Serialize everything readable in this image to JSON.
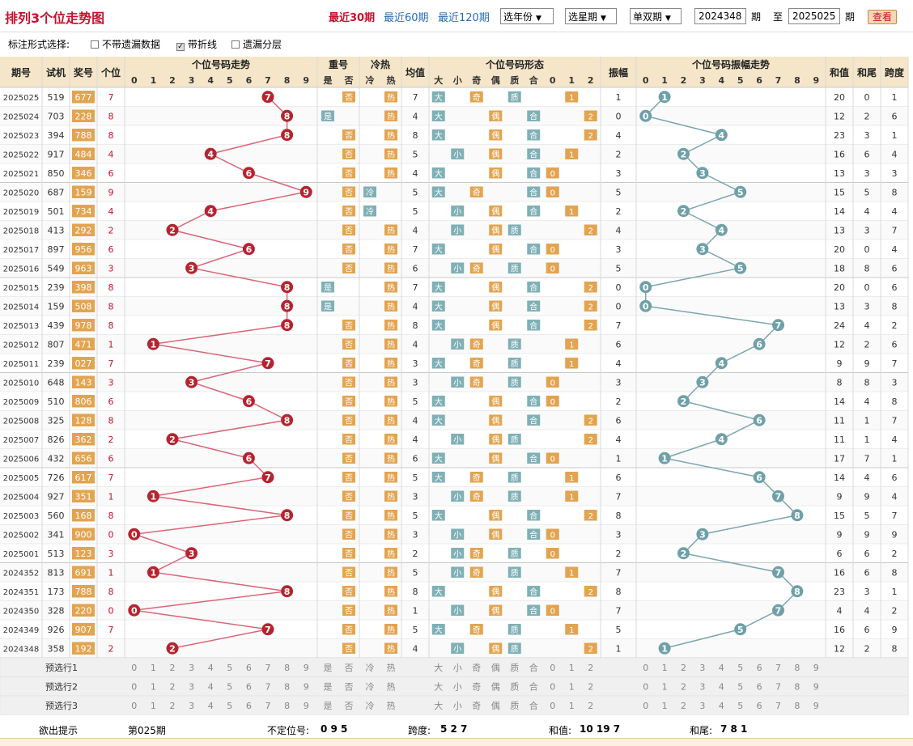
{
  "header": {
    "title": "排列3个位走势图",
    "links": [
      "最近30期",
      "最近60期",
      "最近120期"
    ],
    "year_select": "选年份",
    "week_select": "选星期",
    "parity_select": "单双期",
    "from_issue": "2024348",
    "issue_label": "期",
    "to_label": "至",
    "to_issue": "2025025",
    "issue_label2": "期",
    "view_button": "查看"
  },
  "options": {
    "label": "标注形式选择:",
    "items": [
      "不带遗漏数据",
      "带折线",
      "遗漏分层"
    ],
    "checked": [
      false,
      true,
      false
    ]
  },
  "columns": {
    "issue": "期号",
    "trial": "试机",
    "prize": "奖号",
    "unit": "个位",
    "trend": "个位号码走势",
    "repeat": "重号",
    "hotcold": "冷热",
    "avg": "均值",
    "form": "个位号码形态",
    "amp": "振幅",
    "amptrend": "个位号码振幅走势",
    "sum": "和值",
    "sumtail": "和尾",
    "span": "跨度"
  },
  "subheaders": {
    "repeat": [
      "是",
      "否"
    ],
    "hotcold": [
      "冷",
      "热"
    ],
    "form": [
      "大",
      "小",
      "奇",
      "偶",
      "质",
      "合",
      "0",
      "1",
      "2"
    ]
  },
  "rows": [
    {
      "issue": "2025025",
      "trial": "519",
      "prize": "677",
      "unit": "7",
      "rep": "否",
      "hc": "热",
      "avg": "7",
      "bs": "大",
      "oe": "奇",
      "pc": "质",
      "r3": "1",
      "amp": "1",
      "sum": "20",
      "tail": "0",
      "span": "1"
    },
    {
      "issue": "2025024",
      "trial": "703",
      "prize": "228",
      "unit": "8",
      "rep": "是",
      "hc": "热",
      "avg": "4",
      "bs": "大",
      "oe": "偶",
      "pc": "合",
      "r3": "2",
      "amp": "0",
      "sum": "12",
      "tail": "2",
      "span": "6"
    },
    {
      "issue": "2025023",
      "trial": "394",
      "prize": "788",
      "unit": "8",
      "rep": "否",
      "hc": "热",
      "avg": "8",
      "bs": "大",
      "oe": "偶",
      "pc": "合",
      "r3": "2",
      "amp": "4",
      "sum": "23",
      "tail": "3",
      "span": "1"
    },
    {
      "issue": "2025022",
      "trial": "917",
      "prize": "484",
      "unit": "4",
      "rep": "否",
      "hc": "热",
      "avg": "5",
      "bs": "小",
      "oe": "偶",
      "pc": "合",
      "r3": "1",
      "amp": "2",
      "sum": "16",
      "tail": "6",
      "span": "4"
    },
    {
      "issue": "2025021",
      "trial": "850",
      "prize": "346",
      "unit": "6",
      "rep": "否",
      "hc": "热",
      "avg": "4",
      "bs": "大",
      "oe": "偶",
      "pc": "合",
      "r3": "0",
      "amp": "3",
      "sum": "13",
      "tail": "3",
      "span": "3"
    },
    {
      "issue": "2025020",
      "trial": "687",
      "prize": "159",
      "unit": "9",
      "rep": "否",
      "hc": "冷",
      "avg": "5",
      "bs": "大",
      "oe": "奇",
      "pc": "合",
      "r3": "0",
      "amp": "5",
      "sum": "15",
      "tail": "5",
      "span": "8"
    },
    {
      "issue": "2025019",
      "trial": "501",
      "prize": "734",
      "unit": "4",
      "rep": "否",
      "hc": "冷",
      "avg": "5",
      "bs": "小",
      "oe": "偶",
      "pc": "合",
      "r3": "1",
      "amp": "2",
      "sum": "14",
      "tail": "4",
      "span": "4"
    },
    {
      "issue": "2025018",
      "trial": "413",
      "prize": "292",
      "unit": "2",
      "rep": "否",
      "hc": "热",
      "avg": "4",
      "bs": "小",
      "oe": "偶",
      "pc": "质",
      "r3": "2",
      "amp": "4",
      "sum": "13",
      "tail": "3",
      "span": "7"
    },
    {
      "issue": "2025017",
      "trial": "897",
      "prize": "956",
      "unit": "6",
      "rep": "否",
      "hc": "热",
      "avg": "7",
      "bs": "大",
      "oe": "偶",
      "pc": "合",
      "r3": "0",
      "amp": "3",
      "sum": "20",
      "tail": "0",
      "span": "4"
    },
    {
      "issue": "2025016",
      "trial": "549",
      "prize": "963",
      "unit": "3",
      "rep": "否",
      "hc": "热",
      "avg": "6",
      "bs": "小",
      "oe": "奇",
      "pc": "质",
      "r3": "0",
      "amp": "5",
      "sum": "18",
      "tail": "8",
      "span": "6"
    },
    {
      "issue": "2025015",
      "trial": "239",
      "prize": "398",
      "unit": "8",
      "rep": "是",
      "hc": "热",
      "avg": "7",
      "bs": "大",
      "oe": "偶",
      "pc": "合",
      "r3": "2",
      "amp": "0",
      "sum": "20",
      "tail": "0",
      "span": "6"
    },
    {
      "issue": "2025014",
      "trial": "159",
      "prize": "508",
      "unit": "8",
      "rep": "是",
      "hc": "热",
      "avg": "4",
      "bs": "大",
      "oe": "偶",
      "pc": "合",
      "r3": "2",
      "amp": "0",
      "sum": "13",
      "tail": "3",
      "span": "8"
    },
    {
      "issue": "2025013",
      "trial": "439",
      "prize": "978",
      "unit": "8",
      "rep": "否",
      "hc": "热",
      "avg": "8",
      "bs": "大",
      "oe": "偶",
      "pc": "合",
      "r3": "2",
      "amp": "7",
      "sum": "24",
      "tail": "4",
      "span": "2"
    },
    {
      "issue": "2025012",
      "trial": "807",
      "prize": "471",
      "unit": "1",
      "rep": "否",
      "hc": "热",
      "avg": "4",
      "bs": "小",
      "oe": "奇",
      "pc": "质",
      "r3": "1",
      "amp": "6",
      "sum": "12",
      "tail": "2",
      "span": "6"
    },
    {
      "issue": "2025011",
      "trial": "239",
      "prize": "027",
      "unit": "7",
      "rep": "否",
      "hc": "热",
      "avg": "3",
      "bs": "大",
      "oe": "奇",
      "pc": "质",
      "r3": "1",
      "amp": "4",
      "sum": "9",
      "tail": "9",
      "span": "7"
    },
    {
      "issue": "2025010",
      "trial": "648",
      "prize": "143",
      "unit": "3",
      "rep": "否",
      "hc": "热",
      "avg": "3",
      "bs": "小",
      "oe": "奇",
      "pc": "质",
      "r3": "0",
      "amp": "3",
      "sum": "8",
      "tail": "8",
      "span": "3"
    },
    {
      "issue": "2025009",
      "trial": "510",
      "prize": "806",
      "unit": "6",
      "rep": "否",
      "hc": "热",
      "avg": "5",
      "bs": "大",
      "oe": "偶",
      "pc": "合",
      "r3": "0",
      "amp": "2",
      "sum": "14",
      "tail": "4",
      "span": "8"
    },
    {
      "issue": "2025008",
      "trial": "325",
      "prize": "128",
      "unit": "8",
      "rep": "否",
      "hc": "热",
      "avg": "4",
      "bs": "大",
      "oe": "偶",
      "pc": "合",
      "r3": "2",
      "amp": "6",
      "sum": "11",
      "tail": "1",
      "span": "7"
    },
    {
      "issue": "2025007",
      "trial": "826",
      "prize": "362",
      "unit": "2",
      "rep": "否",
      "hc": "热",
      "avg": "4",
      "bs": "小",
      "oe": "偶",
      "pc": "质",
      "r3": "2",
      "amp": "4",
      "sum": "11",
      "tail": "1",
      "span": "4"
    },
    {
      "issue": "2025006",
      "trial": "432",
      "prize": "656",
      "unit": "6",
      "rep": "否",
      "hc": "热",
      "avg": "6",
      "bs": "大",
      "oe": "偶",
      "pc": "合",
      "r3": "0",
      "amp": "1",
      "sum": "17",
      "tail": "7",
      "span": "1"
    },
    {
      "issue": "2025005",
      "trial": "726",
      "prize": "617",
      "unit": "7",
      "rep": "否",
      "hc": "热",
      "avg": "5",
      "bs": "大",
      "oe": "奇",
      "pc": "质",
      "r3": "1",
      "amp": "6",
      "sum": "14",
      "tail": "4",
      "span": "6"
    },
    {
      "issue": "2025004",
      "trial": "927",
      "prize": "351",
      "unit": "1",
      "rep": "否",
      "hc": "热",
      "avg": "3",
      "bs": "小",
      "oe": "奇",
      "pc": "质",
      "r3": "1",
      "amp": "7",
      "sum": "9",
      "tail": "9",
      "span": "4"
    },
    {
      "issue": "2025003",
      "trial": "560",
      "prize": "168",
      "unit": "8",
      "rep": "否",
      "hc": "热",
      "avg": "5",
      "bs": "大",
      "oe": "偶",
      "pc": "合",
      "r3": "2",
      "amp": "8",
      "sum": "15",
      "tail": "5",
      "span": "7"
    },
    {
      "issue": "2025002",
      "trial": "341",
      "prize": "900",
      "unit": "0",
      "rep": "否",
      "hc": "热",
      "avg": "3",
      "bs": "小",
      "oe": "偶",
      "pc": "合",
      "r3": "0",
      "amp": "3",
      "sum": "9",
      "tail": "9",
      "span": "9"
    },
    {
      "issue": "2025001",
      "trial": "513",
      "prize": "123",
      "unit": "3",
      "rep": "否",
      "hc": "热",
      "avg": "2",
      "bs": "小",
      "oe": "奇",
      "pc": "质",
      "r3": "0",
      "amp": "2",
      "sum": "6",
      "tail": "6",
      "span": "2"
    },
    {
      "issue": "2024352",
      "trial": "813",
      "prize": "691",
      "unit": "1",
      "rep": "否",
      "hc": "热",
      "avg": "5",
      "bs": "小",
      "oe": "奇",
      "pc": "质",
      "r3": "1",
      "amp": "7",
      "sum": "16",
      "tail": "6",
      "span": "8"
    },
    {
      "issue": "2024351",
      "trial": "173",
      "prize": "788",
      "unit": "8",
      "rep": "否",
      "hc": "热",
      "avg": "8",
      "bs": "大",
      "oe": "偶",
      "pc": "合",
      "r3": "2",
      "amp": "8",
      "sum": "23",
      "tail": "3",
      "span": "1"
    },
    {
      "issue": "2024350",
      "trial": "328",
      "prize": "220",
      "unit": "0",
      "rep": "否",
      "hc": "热",
      "avg": "1",
      "bs": "小",
      "oe": "偶",
      "pc": "合",
      "r3": "0",
      "amp": "7",
      "sum": "4",
      "tail": "4",
      "span": "2"
    },
    {
      "issue": "2024349",
      "trial": "926",
      "prize": "907",
      "unit": "7",
      "rep": "否",
      "hc": "热",
      "avg": "5",
      "bs": "大",
      "oe": "奇",
      "pc": "质",
      "r3": "1",
      "amp": "5",
      "sum": "16",
      "tail": "6",
      "span": "9"
    },
    {
      "issue": "2024348",
      "trial": "358",
      "prize": "192",
      "unit": "2",
      "rep": "否",
      "hc": "热",
      "avg": "4",
      "bs": "小",
      "oe": "偶",
      "pc": "质",
      "r3": "2",
      "amp": "1",
      "sum": "12",
      "tail": "2",
      "span": "8"
    }
  ],
  "preselect": [
    "预选行1",
    "预选行2",
    "预选行3"
  ],
  "tips": {
    "label": "欲出提示",
    "issue": "第025期",
    "pos_label": "不定位号:",
    "pos": "0 9 5",
    "span_label": "跨度:",
    "span": "5 2 7",
    "sum_label": "和值:",
    "sum": "10 19 7",
    "tail_label": "和尾:",
    "tail": "7 8 1"
  },
  "colors": {
    "red": "#c8102e",
    "ball_red": "#b5242f",
    "ball_teal": "#6fa0a8",
    "line_red": "#d9667a",
    "line_teal": "#7aa6ad",
    "orange": "#e2a450",
    "teal_cell": "#7fb0b6",
    "header_bg": "#f5e6c9",
    "miss": "#e6a3ac"
  }
}
